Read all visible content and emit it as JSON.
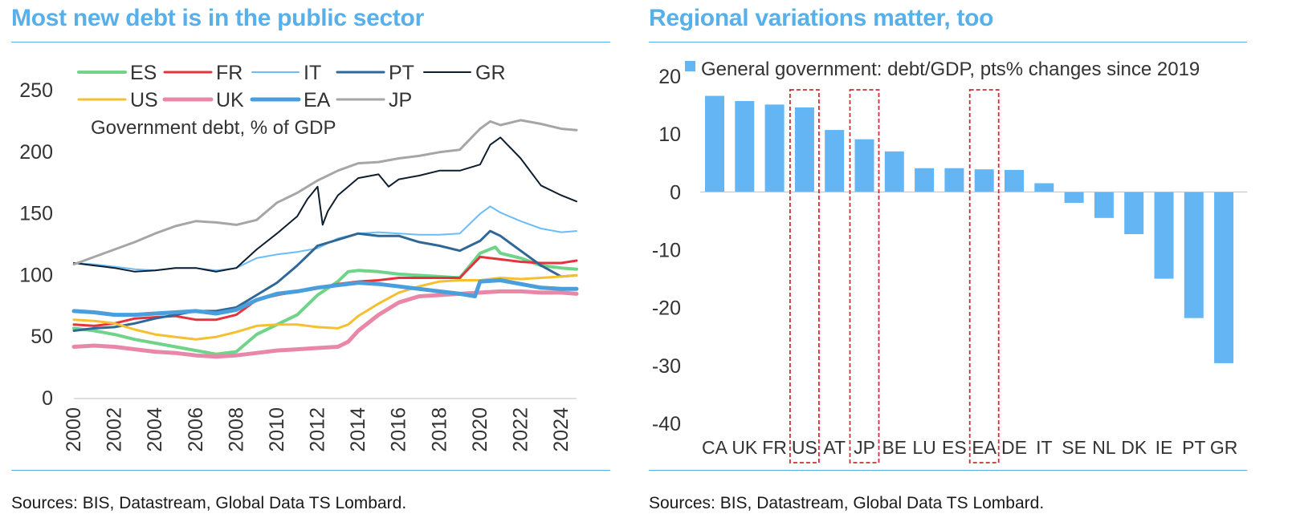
{
  "left_panel": {
    "title": "Most new debt is in the public sector",
    "source": "Sources: BIS, Datastream, Global Data TS Lombard."
  },
  "right_panel": {
    "title": "Regional variations matter, too",
    "source": "Sources: BIS, Datastream, Global Data TS Lombard."
  },
  "colors": {
    "accent": "#57b0ea",
    "ES": "#6fd48a",
    "FR": "#e3343d",
    "IT": "#6cbcf5",
    "PT": "#2f6797",
    "GR": "#0f1e2e",
    "US": "#f4c02f",
    "UK": "#e887a8",
    "EA": "#4a9edb",
    "JP": "#a6a6a6",
    "bar": "#63b5f3",
    "highlight_box": "#c83232"
  },
  "chart_data": [
    {
      "type": "line",
      "annotation": "Government debt, % of GDP",
      "xlim": [
        2000,
        2024.75
      ],
      "ylim": [
        0,
        250
      ],
      "yticks": [
        0,
        50,
        100,
        150,
        200,
        250
      ],
      "xticks": [
        2000,
        2002,
        2004,
        2006,
        2008,
        2010,
        2012,
        2014,
        2016,
        2018,
        2020,
        2022,
        2024
      ],
      "grid": false,
      "legend_position": "top-left",
      "series": [
        {
          "name": "ES",
          "key": "ES",
          "width": 4,
          "points": [
            [
              2000,
              57
            ],
            [
              2001,
              55
            ],
            [
              2002,
              52
            ],
            [
              2003,
              48
            ],
            [
              2004,
              45
            ],
            [
              2005,
              42
            ],
            [
              2006,
              39
            ],
            [
              2007,
              36
            ],
            [
              2008,
              38
            ],
            [
              2009,
              52
            ],
            [
              2010,
              60
            ],
            [
              2011,
              68
            ],
            [
              2012,
              84
            ],
            [
              2013,
              95
            ],
            [
              2013.5,
              103
            ],
            [
              2014,
              104
            ],
            [
              2015,
              103
            ],
            [
              2016,
              101
            ],
            [
              2017,
              100
            ],
            [
              2018,
              99
            ],
            [
              2019,
              98
            ],
            [
              2020,
              118
            ],
            [
              2020.75,
              123
            ],
            [
              2021,
              118
            ],
            [
              2022,
              114
            ],
            [
              2023,
              108
            ],
            [
              2024,
              106
            ],
            [
              2024.75,
              105
            ]
          ]
        },
        {
          "name": "FR",
          "key": "FR",
          "width": 3,
          "points": [
            [
              2000,
              60
            ],
            [
              2001,
              59
            ],
            [
              2002,
              61
            ],
            [
              2003,
              65
            ],
            [
              2004,
              66
            ],
            [
              2005,
              67
            ],
            [
              2006,
              64
            ],
            [
              2007,
              64
            ],
            [
              2008,
              68
            ],
            [
              2009,
              80
            ],
            [
              2010,
              84
            ],
            [
              2011,
              87
            ],
            [
              2012,
              90
            ],
            [
              2013,
              93
            ],
            [
              2014,
              95
            ],
            [
              2015,
              96
            ],
            [
              2016,
              98
            ],
            [
              2017,
              98
            ],
            [
              2018,
              98
            ],
            [
              2019,
              98
            ],
            [
              2020,
              115
            ],
            [
              2021,
              113
            ],
            [
              2022,
              111
            ],
            [
              2023,
              110
            ],
            [
              2024,
              110
            ],
            [
              2024.75,
              112
            ]
          ]
        },
        {
          "name": "IT",
          "key": "IT",
          "width": 2,
          "points": [
            [
              2000,
              110
            ],
            [
              2001,
              109
            ],
            [
              2002,
              107
            ],
            [
              2003,
              105
            ],
            [
              2004,
              104
            ],
            [
              2005,
              106
            ],
            [
              2006,
              106
            ],
            [
              2007,
              104
            ],
            [
              2008,
              106
            ],
            [
              2009,
              114
            ],
            [
              2010,
              117
            ],
            [
              2011,
              119
            ],
            [
              2012,
              122
            ],
            [
              2013,
              130
            ],
            [
              2014,
              134
            ],
            [
              2015,
              135
            ],
            [
              2016,
              134
            ],
            [
              2017,
              133
            ],
            [
              2018,
              133
            ],
            [
              2019,
              134
            ],
            [
              2020,
              150
            ],
            [
              2020.5,
              156
            ],
            [
              2021,
              151
            ],
            [
              2022,
              144
            ],
            [
              2023,
              138
            ],
            [
              2024,
              135
            ],
            [
              2024.75,
              136
            ]
          ]
        },
        {
          "name": "PT",
          "key": "PT",
          "width": 3,
          "points": [
            [
              2000,
              55
            ],
            [
              2001,
              57
            ],
            [
              2002,
              58
            ],
            [
              2003,
              61
            ],
            [
              2004,
              65
            ],
            [
              2005,
              68
            ],
            [
              2006,
              71
            ],
            [
              2007,
              71
            ],
            [
              2008,
              74
            ],
            [
              2009,
              84
            ],
            [
              2010,
              94
            ],
            [
              2011,
              108
            ],
            [
              2012,
              124
            ],
            [
              2013,
              129
            ],
            [
              2014,
              134
            ],
            [
              2015,
              132
            ],
            [
              2016,
              132
            ],
            [
              2017,
              127
            ],
            [
              2018,
              124
            ],
            [
              2019,
              120
            ],
            [
              2020,
              128
            ],
            [
              2020.5,
              136
            ],
            [
              2021,
              132
            ],
            [
              2022,
              120
            ],
            [
              2023,
              108
            ],
            [
              2024,
              99
            ],
            [
              2024.75,
              100
            ]
          ]
        },
        {
          "name": "GR",
          "key": "GR",
          "width": 2,
          "points": [
            [
              2000,
              110
            ],
            [
              2001,
              108
            ],
            [
              2002,
              106
            ],
            [
              2003,
              103
            ],
            [
              2004,
              104
            ],
            [
              2005,
              106
            ],
            [
              2006,
              106
            ],
            [
              2007,
              103
            ],
            [
              2008,
              106
            ],
            [
              2009,
              121
            ],
            [
              2010,
              134
            ],
            [
              2011,
              148
            ],
            [
              2011.5,
              162
            ],
            [
              2012,
              172
            ],
            [
              2012.25,
              141
            ],
            [
              2012.5,
              152
            ],
            [
              2013,
              165
            ],
            [
              2014,
              179
            ],
            [
              2015,
              182
            ],
            [
              2015.5,
              172
            ],
            [
              2016,
              178
            ],
            [
              2017,
              181
            ],
            [
              2018,
              185
            ],
            [
              2019,
              185
            ],
            [
              2020,
              190
            ],
            [
              2020.5,
              206
            ],
            [
              2021,
              212
            ],
            [
              2022,
              195
            ],
            [
              2023,
              173
            ],
            [
              2024,
              165
            ],
            [
              2024.75,
              160
            ]
          ]
        },
        {
          "name": "US",
          "key": "US",
          "width": 3,
          "points": [
            [
              2000,
              64
            ],
            [
              2001,
              63
            ],
            [
              2002,
              61
            ],
            [
              2003,
              56
            ],
            [
              2004,
              52
            ],
            [
              2005,
              50
            ],
            [
              2006,
              48
            ],
            [
              2007,
              50
            ],
            [
              2008,
              54
            ],
            [
              2009,
              59
            ],
            [
              2010,
              60
            ],
            [
              2011,
              60
            ],
            [
              2012,
              58
            ],
            [
              2013,
              57
            ],
            [
              2013.5,
              60
            ],
            [
              2014,
              67
            ],
            [
              2015,
              77
            ],
            [
              2016,
              86
            ],
            [
              2017,
              91
            ],
            [
              2018,
              95
            ],
            [
              2019,
              96
            ],
            [
              2020,
              96
            ],
            [
              2021,
              98
            ],
            [
              2022,
              97
            ],
            [
              2023,
              98
            ],
            [
              2024,
              99
            ],
            [
              2024.75,
              100
            ]
          ]
        },
        {
          "name": "UK",
          "key": "UK",
          "width": 5,
          "points": [
            [
              2000,
              42
            ],
            [
              2001,
              43
            ],
            [
              2002,
              42
            ],
            [
              2003,
              40
            ],
            [
              2004,
              38
            ],
            [
              2005,
              37
            ],
            [
              2006,
              35
            ],
            [
              2007,
              34
            ],
            [
              2008,
              35
            ],
            [
              2009,
              37
            ],
            [
              2010,
              39
            ],
            [
              2011,
              40
            ],
            [
              2012,
              41
            ],
            [
              2013,
              42
            ],
            [
              2013.5,
              46
            ],
            [
              2014,
              55
            ],
            [
              2015,
              68
            ],
            [
              2016,
              78
            ],
            [
              2017,
              83
            ],
            [
              2018,
              84
            ],
            [
              2019,
              85
            ],
            [
              2020,
              86
            ],
            [
              2021,
              87
            ],
            [
              2022,
              87
            ],
            [
              2023,
              86
            ],
            [
              2024,
              86
            ],
            [
              2024.75,
              85
            ]
          ]
        },
        {
          "name": "EA",
          "key": "EA",
          "width": 5,
          "points": [
            [
              2000,
              71
            ],
            [
              2001,
              70
            ],
            [
              2002,
              68
            ],
            [
              2003,
              68
            ],
            [
              2004,
              69
            ],
            [
              2005,
              70
            ],
            [
              2006,
              71
            ],
            [
              2007,
              69
            ],
            [
              2008,
              72
            ],
            [
              2009,
              80
            ],
            [
              2010,
              85
            ],
            [
              2011,
              87
            ],
            [
              2012,
              90
            ],
            [
              2013,
              92
            ],
            [
              2014,
              94
            ],
            [
              2015,
              93
            ],
            [
              2016,
              91
            ],
            [
              2017,
              89
            ],
            [
              2018,
              87
            ],
            [
              2019,
              85
            ],
            [
              2019.75,
              83
            ],
            [
              2020,
              95
            ],
            [
              2021,
              96
            ],
            [
              2022,
              93
            ],
            [
              2023,
              90
            ],
            [
              2024,
              89
            ],
            [
              2024.75,
              89
            ]
          ]
        },
        {
          "name": "JP",
          "key": "JP",
          "width": 3,
          "points": [
            [
              2000,
              109
            ],
            [
              2001,
              115
            ],
            [
              2002,
              121
            ],
            [
              2003,
              127
            ],
            [
              2004,
              134
            ],
            [
              2005,
              140
            ],
            [
              2006,
              144
            ],
            [
              2007,
              143
            ],
            [
              2008,
              141
            ],
            [
              2009,
              145
            ],
            [
              2010,
              159
            ],
            [
              2011,
              167
            ],
            [
              2012,
              177
            ],
            [
              2013,
              185
            ],
            [
              2014,
              191
            ],
            [
              2015,
              192
            ],
            [
              2016,
              195
            ],
            [
              2017,
              197
            ],
            [
              2018,
              200
            ],
            [
              2019,
              202
            ],
            [
              2020,
              219
            ],
            [
              2020.5,
              225
            ],
            [
              2021,
              222
            ],
            [
              2022,
              226
            ],
            [
              2023,
              223
            ],
            [
              2024,
              219
            ],
            [
              2024.75,
              218
            ]
          ]
        }
      ]
    },
    {
      "type": "bar",
      "legend": "General government: debt/GDP, pts% changes since 2019",
      "ylim": [
        -40,
        20
      ],
      "yticks": [
        20,
        10,
        0,
        -10,
        -20,
        -30,
        -40
      ],
      "grid": false,
      "legend_position": "top",
      "categories": [
        "CA",
        "UK",
        "FR",
        "US",
        "AT",
        "JP",
        "BE",
        "LU",
        "ES",
        "EA",
        "DE",
        "IT",
        "SE",
        "NL",
        "DK",
        "IE",
        "PT",
        "GR"
      ],
      "values": [
        16.6,
        15.7,
        15.1,
        14.6,
        10.7,
        9.1,
        7.0,
        4.1,
        4.1,
        3.9,
        3.8,
        1.5,
        -1.9,
        -4.5,
        -7.3,
        -15.0,
        -21.8,
        -29.6
      ],
      "highlighted": [
        "US",
        "JP",
        "EA"
      ]
    }
  ]
}
